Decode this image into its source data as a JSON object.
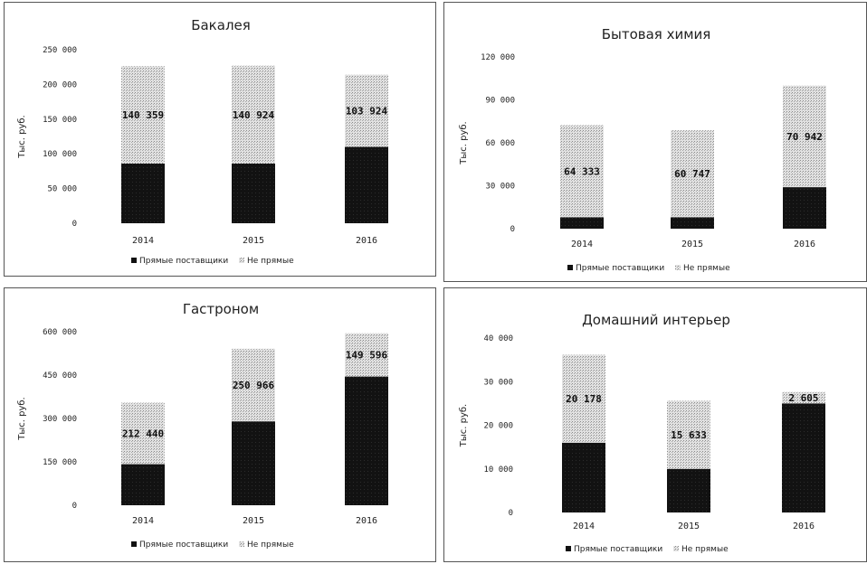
{
  "chart_data": [
    {
      "type": "bar",
      "stacked": true,
      "title": "Бакалея",
      "ylabel": "Тыс. руб.",
      "categories": [
        "2014",
        "2015",
        "2016"
      ],
      "ylim": [
        0,
        250000
      ],
      "yticks": [
        0,
        50000,
        100000,
        150000,
        200000,
        250000
      ],
      "ytick_labels": [
        "0",
        "50 000",
        "100 000",
        "150 000",
        "200 000",
        "250 000"
      ],
      "series": [
        {
          "name": "Прямые поставщики",
          "values": [
            86000,
            86000,
            110000
          ],
          "color": "#111111"
        },
        {
          "name": "Не прямые",
          "values": [
            140359,
            140924,
            103924
          ],
          "color": "#d4d4d4",
          "labels": [
            "140 359",
            "140 924",
            "103 924"
          ]
        }
      ],
      "legend": "bottom",
      "legend_labels": [
        "Прямые поставщики",
        "Не прямые"
      ]
    },
    {
      "type": "bar",
      "stacked": true,
      "title": "Бытовая химия",
      "ylabel": "Тыс. руб.",
      "categories": [
        "2014",
        "2015",
        "2016"
      ],
      "ylim": [
        0,
        120000
      ],
      "yticks": [
        0,
        30000,
        60000,
        90000,
        120000
      ],
      "ytick_labels": [
        "0",
        "30 000",
        "60 000",
        "90 000",
        "120 000"
      ],
      "series": [
        {
          "name": "Прямые поставщики",
          "values": [
            8000,
            8000,
            29000
          ],
          "color": "#111111"
        },
        {
          "name": "Не прямые",
          "values": [
            64333,
            60747,
            70942
          ],
          "color": "#d4d4d4",
          "labels": [
            "64 333",
            "60 747",
            "70 942"
          ]
        }
      ],
      "legend": "bottom",
      "legend_labels": [
        "Прямые поставщики",
        "Не прямые"
      ]
    },
    {
      "type": "bar",
      "stacked": true,
      "title": "Гастроном",
      "ylabel": "Тыс. руб.",
      "categories": [
        "2014",
        "2015",
        "2016"
      ],
      "ylim": [
        0,
        600000
      ],
      "yticks": [
        0,
        150000,
        300000,
        450000,
        600000
      ],
      "ytick_labels": [
        "0",
        "150 000",
        "300 000",
        "450 000",
        "600 000"
      ],
      "series": [
        {
          "name": "Прямые поставщики",
          "values": [
            142000,
            290000,
            445000
          ],
          "color": "#111111"
        },
        {
          "name": "Не прямые",
          "values": [
            212440,
            250966,
            149596
          ],
          "color": "#d4d4d4",
          "labels": [
            "212 440",
            "250 966",
            "149 596"
          ]
        }
      ],
      "legend": "bottom",
      "legend_labels": [
        "Прямые поставщики",
        "Не прямые"
      ]
    },
    {
      "type": "bar",
      "stacked": true,
      "title": "Домашний интерьер",
      "ylabel": "Тыс. руб.",
      "categories": [
        "2014",
        "2015",
        "2016"
      ],
      "ylim": [
        0,
        40000
      ],
      "yticks": [
        0,
        10000,
        20000,
        30000,
        40000
      ],
      "ytick_labels": [
        "0",
        "10 000",
        "20 000",
        "30 000",
        "40 000"
      ],
      "series": [
        {
          "name": "Прямые поставщики",
          "values": [
            16000,
            10000,
            25000
          ],
          "color": "#111111"
        },
        {
          "name": "Не прямые",
          "values": [
            20178,
            15633,
            2605
          ],
          "color": "#d4d4d4",
          "labels": [
            "20 178",
            "15 633",
            "2 605"
          ]
        }
      ],
      "legend": "bottom",
      "legend_labels": [
        "Прямые поставщики",
        "Не прямые"
      ]
    }
  ]
}
